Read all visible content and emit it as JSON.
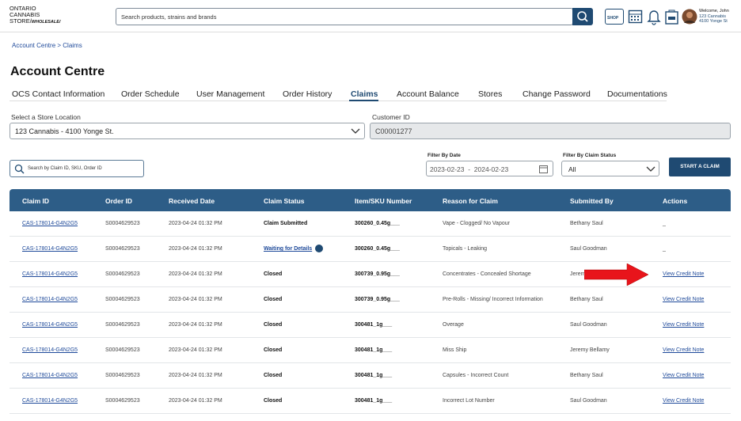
{
  "header": {
    "logo": [
      "ONTARIO",
      "CANNABIS",
      "STORE/"
    ],
    "logo_tag": "WHOLESALE/",
    "search_placeholder": "Search products, strains and brands",
    "shop_label": "SHOP",
    "welcome": [
      "Welcome, John",
      "123 Cannabis",
      "4100 Yonge St"
    ]
  },
  "breadcrumb": "Account Centre > Claims",
  "page_title": "Account Centre",
  "tabs": [
    "OCS Contact Information",
    "Order Schedule",
    "User Management",
    "Order History",
    "Claims",
    "Account Balance",
    "Stores",
    "Change Password",
    "Documentations"
  ],
  "active_tab": 4,
  "filters": {
    "store_label": "Select a Store Location",
    "store_value": "123 Cannabis - 4100 Yonge St.",
    "customer_label": "Customer ID",
    "customer_value": "C00001277",
    "search_placeholder": "Search by Claim ID, SKU, Order ID",
    "date_label": "Filter By Date",
    "date_range": "2023-02-23  -  2024-02-23",
    "status_label": "Filter By Claim Status",
    "status_value": "All",
    "button": "START A CLAIM"
  },
  "table": {
    "columns": [
      "Claim ID",
      "Order ID",
      "Received Date",
      "Claim Status",
      "Item/SKU Number",
      "Reason for Claim",
      "Submitted By",
      "Actions"
    ],
    "rows": [
      [
        "CAS-178014-G4N2G5",
        "S0004629523",
        "2023-04-24 01:32 PM",
        "Claim Submitted",
        "300260_0.45g___",
        "Vape - Clogged/ No Vapour",
        "Bethany Saul",
        "_"
      ],
      [
        "CAS-178014-G4N2G5",
        "S0004629523",
        "2023-04-24 01:32 PM",
        "Waiting for Details",
        "300260_0.45g___",
        "Topicals - Leaking",
        "Saul Goodman",
        "_"
      ],
      [
        "CAS-178014-G4N2G5",
        "S0004629523",
        "2023-04-24 01:32 PM",
        "Closed",
        "300739_0.95g___",
        "Concentrates - Concealed Shortage",
        "Jeremy Bellamy",
        "View Credit Note"
      ],
      [
        "CAS-178014-G4N2G5",
        "S0004629523",
        "2023-04-24 01:32 PM",
        "Closed",
        "300739_0.95g___",
        "Pre-Rolls - Missing/ Incorrect Information",
        "Bethany Saul",
        "View Credit Note"
      ],
      [
        "CAS-178014-G4N2G5",
        "S0004629523",
        "2023-04-24 01:32 PM",
        "Closed",
        "300481_1g___",
        "Overage",
        "Saul Goodman",
        "View Credit Note"
      ],
      [
        "CAS-178014-G4N2G5",
        "S0004629523",
        "2023-04-24 01:32 PM",
        "Closed",
        "300481_1g___",
        "Miss Ship",
        "Jeremy Bellamy",
        "View Credit Note"
      ],
      [
        "CAS-178014-G4N2G5",
        "S0004629523",
        "2023-04-24 01:32 PM",
        "Closed",
        "300481_1g___",
        "Capsules - Incorrect Count",
        "Bethany Saul",
        "View Credit Note"
      ],
      [
        "CAS-178014-G4N2G5",
        "S0004629523",
        "2023-04-24 01:32 PM",
        "Closed",
        "300481_1g___",
        "Incorrect Lot Number",
        "Saul Goodman",
        "View Credit Note"
      ]
    ]
  }
}
